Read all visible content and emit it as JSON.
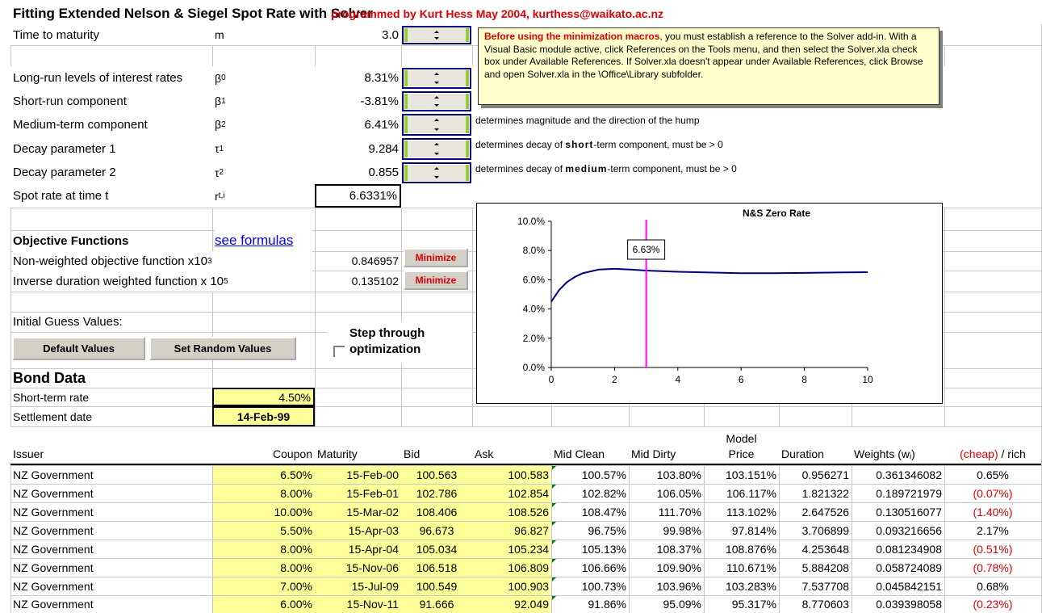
{
  "title": "Fitting Extended Nelson & Siegel Spot Rate with Solver",
  "byline": "programmed by Kurt Hess May 2004, kurthess@waikato.ac.nz",
  "parameters": [
    {
      "label": "Time to maturity",
      "symbol": "m",
      "value": "3.0"
    },
    {
      "label": "Long-run levels of interest rates",
      "symbol": "β",
      "sub": "0",
      "value": "8.31%"
    },
    {
      "label": "Short-run component",
      "symbol": "β",
      "sub": "1",
      "value": "-3.81%"
    },
    {
      "label": "Medium-term component",
      "symbol": "β",
      "sub": "2",
      "value": "6.41%",
      "note": [
        "determines magnitude and the direction of the hump"
      ]
    },
    {
      "label": "Decay parameter 1",
      "symbol": "τ",
      "sub": "1",
      "value": "9.284",
      "note": [
        "determines decay of ",
        "short",
        "-term component, must be > 0"
      ]
    },
    {
      "label": "Decay parameter 2",
      "symbol": "τ",
      "sub": "2",
      "value": "0.855",
      "note": [
        "determines decay of ",
        "medium",
        "-term component, must be > 0"
      ]
    },
    {
      "label": "Spot rate at time t",
      "symbol": "r",
      "sub": "t,i",
      "value": "6.6331%"
    }
  ],
  "textbox": {
    "lead": "Before using the minimization macros",
    "body": ", you must establish a reference to the Solver add-in. With a Visual Basic module active, click References on the Tools menu, and then select the Solver.xla check box under Available References. If Solver.xla doesn't appear under Available References, click Browse and open Solver.xla in the \\Office\\Library subfolder."
  },
  "objective": {
    "heading": "Objective Functions",
    "link": "see formulas",
    "functions": [
      {
        "label": "Non-weighted objective function x10",
        "sup": "3",
        "value": "0.846957",
        "button": "Minimize"
      },
      {
        "label": "Inverse duration weighted function x 10",
        "sup": "5",
        "value": "0.135102",
        "button": "Minimize"
      }
    ]
  },
  "initial": {
    "label": "Initial Guess Values:",
    "buttons": [
      "Default Values",
      "Set Random Values"
    ],
    "checkbox": "Step through optimization"
  },
  "bond": {
    "heading": "Bond Data",
    "short_rate_label": "Short-term rate",
    "short_rate": "4.50%",
    "settlement_label": "Settlement date",
    "settlement": "14-Feb-99"
  },
  "table": {
    "headers": [
      "Issuer",
      "Coupon",
      "Maturity",
      "Bid",
      "Ask",
      "Mid Clean",
      "Mid Dirty",
      "Model Price",
      "Duration",
      "Weights (wᵢ)",
      [
        "(cheap)",
        " / rich"
      ]
    ],
    "rows": [
      [
        "NZ Government",
        "6.50%",
        "15-Feb-00",
        "100.563",
        "100.583",
        "100.57%",
        "103.80%",
        "103.151%",
        "0.956271",
        "0.361346082",
        "0.65%"
      ],
      [
        "NZ Government",
        "8.00%",
        "15-Feb-01",
        "102.786",
        "102.854",
        "102.82%",
        "106.05%",
        "106.117%",
        "1.821322",
        "0.189721979",
        "(0.07%)"
      ],
      [
        "NZ Government",
        "10.00%",
        "15-Mar-02",
        "108.406",
        "108.526",
        "108.47%",
        "111.70%",
        "113.102%",
        "2.647526",
        "0.130516077",
        "(1.40%)"
      ],
      [
        "NZ Government",
        "5.50%",
        "15-Apr-03",
        "96.673",
        "96.827",
        "96.75%",
        "99.98%",
        "97.814%",
        "3.706899",
        "0.093216656",
        "2.17%"
      ],
      [
        "NZ Government",
        "8.00%",
        "15-Apr-04",
        "105.034",
        "105.234",
        "105.13%",
        "108.37%",
        "108.876%",
        "4.253648",
        "0.081234908",
        "(0.51%)"
      ],
      [
        "NZ Government",
        "8.00%",
        "15-Nov-06",
        "106.518",
        "106.809",
        "106.66%",
        "109.90%",
        "110.671%",
        "5.884208",
        "0.058724089",
        "(0.78%)"
      ],
      [
        "NZ Government",
        "7.00%",
        "15-Jul-09",
        "100.549",
        "100.903",
        "100.73%",
        "103.96%",
        "103.283%",
        "7.537708",
        "0.045842151",
        "0.68%"
      ],
      [
        "NZ Government",
        "6.00%",
        "15-Nov-11",
        "91.666",
        "92.049",
        "91.86%",
        "95.09%",
        "95.317%",
        "8.770603",
        "0.039398058",
        "(0.23%)"
      ]
    ]
  },
  "chart_data": {
    "type": "line",
    "title": "N&S Zero Rate",
    "x": [
      0,
      0.25,
      0.5,
      0.75,
      1,
      1.5,
      2,
      2.5,
      3,
      4,
      5,
      6,
      7,
      8,
      9,
      10
    ],
    "series": [
      {
        "name": "N&S Zero Rate",
        "color": "#000080",
        "values": [
          4.5,
          5.3,
          5.85,
          6.2,
          6.45,
          6.7,
          6.75,
          6.7,
          6.63,
          6.55,
          6.5,
          6.45,
          6.45,
          6.47,
          6.5,
          6.52
        ]
      }
    ],
    "xlim": [
      0,
      10
    ],
    "xticks": [
      0,
      2,
      4,
      6,
      8,
      10
    ],
    "ylim": [
      0,
      10
    ],
    "yticks": [
      {
        "value": 0,
        "label": "0.0%"
      },
      {
        "value": 2,
        "label": "2.0%"
      },
      {
        "value": 4,
        "label": "4.0%"
      },
      {
        "value": 6,
        "label": "6.0%"
      },
      {
        "value": 8,
        "label": "8.0%"
      },
      {
        "value": 10,
        "label": "10.0%"
      }
    ],
    "marker": {
      "x": 3,
      "label": "6.63%",
      "color": "#ff00ff"
    }
  }
}
